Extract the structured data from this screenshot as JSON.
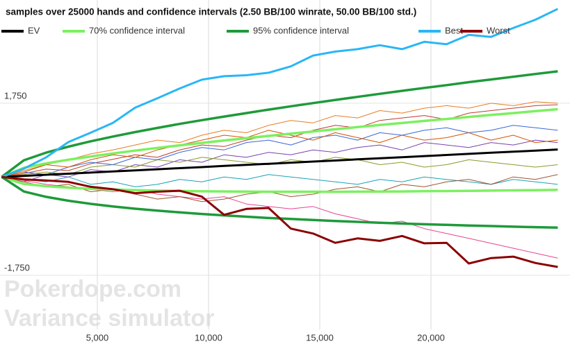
{
  "chart_data": {
    "type": "line",
    "title": "samples over 25000 hands and confidence intervals (2.50 BB/100 winrate, 50.00 BB/100 std.)",
    "watermark": [
      "Pokerdope.com",
      "Variance simulator"
    ],
    "x": [
      700,
      1700,
      2700,
      3700,
      4700,
      5700,
      6700,
      7700,
      8700,
      9700,
      10700,
      11700,
      12700,
      13700,
      14700,
      15700,
      16700,
      17700,
      18700,
      19700,
      20700,
      21700,
      22700,
      23700,
      24700,
      25700
    ],
    "xlim": [
      625,
      26250
    ],
    "xticks": [
      {
        "value": 5000,
        "label": "5,000"
      },
      {
        "value": 10000,
        "label": "10,000"
      },
      {
        "value": 15000,
        "label": "15,000"
      },
      {
        "value": 20000,
        "label": "20,000"
      }
    ],
    "ylim": [
      -2850,
      3850
    ],
    "yticks": [
      {
        "value": -1750,
        "label": "-1,750"
      },
      {
        "value": 1750,
        "label": "1,750"
      }
    ],
    "grid": true,
    "legend": "top",
    "samples": [
      {
        "color": "#c0392b",
        "values": [
          250,
          320,
          410,
          380,
          520,
          610,
          700,
          650,
          800,
          900,
          870,
          1000,
          1100,
          1050,
          1200,
          1300,
          1250,
          1400,
          1450,
          1500,
          1420,
          1550,
          1600,
          1650,
          1700,
          1720
        ]
      },
      {
        "color": "#7b3fb0",
        "values": [
          250,
          150,
          300,
          250,
          400,
          350,
          500,
          450,
          600,
          550,
          700,
          650,
          750,
          700,
          800,
          750,
          850,
          900,
          800,
          950,
          900,
          850,
          950,
          900,
          1000,
          950
        ]
      },
      {
        "color": "#e67e22",
        "values": [
          250,
          380,
          500,
          600,
          720,
          800,
          900,
          1000,
          950,
          1100,
          1200,
          1150,
          1300,
          1400,
          1350,
          1500,
          1450,
          1600,
          1550,
          1650,
          1700,
          1650,
          1750,
          1700,
          1780,
          1750
        ]
      },
      {
        "color": "#17a2b8",
        "values": [
          250,
          200,
          150,
          250,
          100,
          150,
          50,
          100,
          200,
          150,
          250,
          200,
          300,
          250,
          200,
          150,
          100,
          200,
          150,
          250,
          200,
          150,
          100,
          200,
          150,
          100
        ]
      },
      {
        "color": "#e84393",
        "values": [
          250,
          180,
          100,
          50,
          0,
          -50,
          0,
          -100,
          -150,
          -200,
          -150,
          -300,
          -350,
          -400,
          -350,
          -500,
          -600,
          -700,
          -650,
          -800,
          -900,
          -1000,
          -1100,
          -1200,
          -1300,
          -1400
        ]
      },
      {
        "color": "#8a9a2b",
        "values": [
          250,
          300,
          350,
          300,
          450,
          500,
          450,
          600,
          550,
          650,
          600,
          550,
          500,
          600,
          550,
          650,
          600,
          500,
          550,
          450,
          500,
          600,
          550,
          500,
          450,
          500
        ]
      },
      {
        "color": "#3867d6",
        "values": [
          250,
          350,
          300,
          450,
          550,
          500,
          650,
          600,
          750,
          850,
          800,
          950,
          1000,
          900,
          1050,
          1100,
          1000,
          1150,
          1100,
          1200,
          1250,
          1150,
          1200,
          1300,
          1250,
          1200
        ]
      },
      {
        "color": "#a0522d",
        "values": [
          250,
          150,
          50,
          100,
          -50,
          0,
          -100,
          -200,
          -150,
          -250,
          -200,
          -100,
          -50,
          -150,
          -100,
          0,
          50,
          -50,
          100,
          50,
          150,
          200,
          100,
          250,
          200,
          300
        ]
      },
      {
        "color": "#d35400",
        "values": [
          250,
          350,
          500,
          450,
          600,
          700,
          650,
          800,
          900,
          1000,
          1100,
          1050,
          1200,
          1100,
          1000,
          1150,
          1050,
          950,
          1100,
          1000,
          1050,
          1150,
          1000,
          1100,
          950,
          1000
        ]
      }
    ],
    "series": [
      {
        "name": "EV",
        "color": "#000000",
        "values": [
          250,
          272,
          295,
          317,
          339,
          362,
          384,
          407,
          429,
          451,
          474,
          496,
          518,
          541,
          563,
          585,
          608,
          630,
          652,
          675,
          697,
          720,
          742,
          764,
          787,
          809
        ]
      },
      {
        "name": "70% confidence interval",
        "color": "#7cf060",
        "values": [
          250,
          436,
          527,
          601,
          667,
          729,
          786,
          841,
          893,
          943,
          992,
          1040,
          1086,
          1132,
          1176,
          1221,
          1264,
          1307,
          1348,
          1390,
          1430,
          1472,
          1511,
          1550,
          1591,
          1629
        ],
        "lower": [
          250,
          108,
          63,
          33,
          11,
          -5,
          -18,
          -27,
          -35,
          -41,
          -44,
          -48,
          -50,
          -50,
          -50,
          -51,
          -48,
          -47,
          -44,
          -40,
          -36,
          -32,
          -27,
          -22,
          -17,
          -11
        ]
      },
      {
        "name": "95% confidence interval",
        "color": "#1e9a3a",
        "values": [
          250,
          590,
          745,
          867,
          975,
          1073,
          1163,
          1248,
          1329,
          1405,
          1479,
          1550,
          1620,
          1687,
          1752,
          1817,
          1880,
          1942,
          2002,
          2061,
          2118,
          2178,
          2233,
          2289,
          2345,
          2399
        ],
        "lower": [
          250,
          -46,
          -155,
          -233,
          -297,
          -349,
          -395,
          -434,
          -471,
          -503,
          -531,
          -558,
          -584,
          -605,
          -626,
          -647,
          -664,
          -682,
          -698,
          -711,
          -724,
          -738,
          -749,
          -761,
          -771,
          -781
        ]
      },
      {
        "name": "Best",
        "color": "#29b6f6",
        "values": [
          250,
          420,
          650,
          960,
          1150,
          1350,
          1660,
          1850,
          2050,
          2230,
          2300,
          2320,
          2370,
          2500,
          2720,
          2800,
          2850,
          2930,
          2850,
          3000,
          2950,
          3140,
          3100,
          3280,
          3450,
          3670
        ]
      },
      {
        "name": "Worst",
        "color": "#8b0000",
        "values": [
          250,
          200,
          180,
          150,
          50,
          0,
          -80,
          -50,
          -30,
          -150,
          -520,
          -400,
          -380,
          -800,
          -900,
          -1090,
          -1000,
          -1050,
          -950,
          -1100,
          -1090,
          -1510,
          -1400,
          -1370,
          -1500,
          -1580
        ]
      }
    ]
  }
}
